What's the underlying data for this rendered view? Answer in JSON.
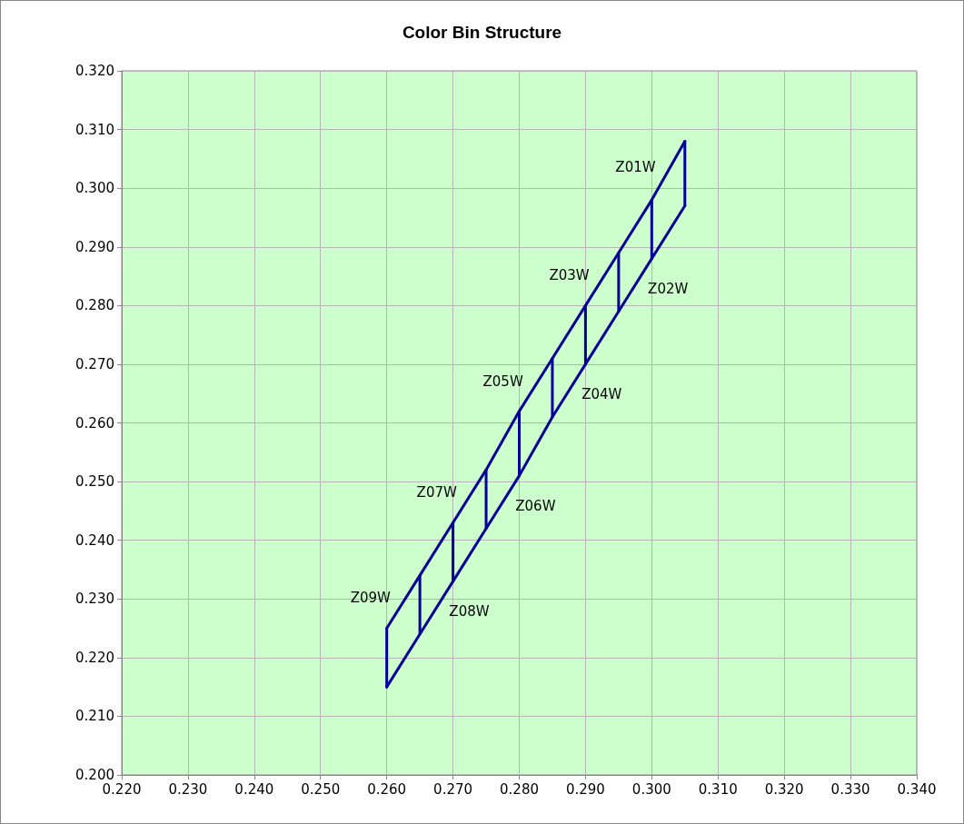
{
  "chart_data": {
    "type": "line",
    "title": "Color Bin Structure",
    "series": [
      {
        "color": "#000099",
        "x": [
          0.26,
          0.265,
          0.27,
          0.275,
          0.28,
          0.285,
          0.29,
          0.295,
          0.3,
          0.305
        ],
        "values": [
          0.225,
          0.234,
          0.243,
          0.252,
          0.262,
          0.271,
          0.28,
          0.289,
          0.298,
          0.308
        ]
      },
      {
        "color": "#000099",
        "x": [
          0.26,
          0.265,
          0.27,
          0.275,
          0.28,
          0.285,
          0.29,
          0.295,
          0.3,
          0.305
        ],
        "values": [
          0.215,
          0.224,
          0.233,
          0.242,
          0.251,
          0.261,
          0.27,
          0.279,
          0.288,
          0.297
        ]
      },
      {
        "color": "#000099",
        "x": [
          0.26,
          0.26
        ],
        "values": [
          0.215,
          0.225
        ]
      },
      {
        "color": "#000099",
        "x": [
          0.265,
          0.265
        ],
        "values": [
          0.224,
          0.234
        ]
      },
      {
        "color": "#000099",
        "x": [
          0.27,
          0.27
        ],
        "values": [
          0.233,
          0.243
        ]
      },
      {
        "color": "#000099",
        "x": [
          0.275,
          0.275
        ],
        "values": [
          0.242,
          0.252
        ]
      },
      {
        "color": "#000099",
        "x": [
          0.28,
          0.28
        ],
        "values": [
          0.251,
          0.262
        ]
      },
      {
        "color": "#000099",
        "x": [
          0.285,
          0.285
        ],
        "values": [
          0.261,
          0.271
        ]
      },
      {
        "color": "#000099",
        "x": [
          0.29,
          0.29
        ],
        "values": [
          0.27,
          0.28
        ]
      },
      {
        "color": "#000099",
        "x": [
          0.295,
          0.295
        ],
        "values": [
          0.279,
          0.289
        ]
      },
      {
        "color": "#000099",
        "x": [
          0.3,
          0.3
        ],
        "values": [
          0.288,
          0.298
        ]
      },
      {
        "color": "#000099",
        "x": [
          0.305,
          0.305
        ],
        "values": [
          0.297,
          0.308
        ]
      }
    ],
    "annotations": [
      "Z01W",
      "Z02W",
      "Z03W",
      "Z04W",
      "Z05W",
      "Z06W",
      "Z07W",
      "Z08W",
      "Z09W"
    ],
    "xlim": [
      0.22,
      0.34
    ],
    "xticks": [
      {
        "value": 0.22,
        "label": "0.220"
      },
      {
        "value": 0.23,
        "label": "0.230"
      },
      {
        "value": 0.24,
        "label": "0.240"
      },
      {
        "value": 0.25,
        "label": "0.250"
      },
      {
        "value": 0.26,
        "label": "0.260"
      },
      {
        "value": 0.27,
        "label": "0.270"
      },
      {
        "value": 0.28,
        "label": "0.280"
      },
      {
        "value": 0.29,
        "label": "0.290"
      },
      {
        "value": 0.3,
        "label": "0.300"
      },
      {
        "value": 0.31,
        "label": "0.310"
      },
      {
        "value": 0.32,
        "label": "0.320"
      },
      {
        "value": 0.33,
        "label": "0.330"
      },
      {
        "value": 0.34,
        "label": "0.340"
      }
    ],
    "ylim": [
      0.2,
      0.32
    ],
    "yticks": [
      {
        "value": 0.2,
        "label": "0.200"
      },
      {
        "value": 0.21,
        "label": "0.210"
      },
      {
        "value": 0.22,
        "label": "0.220"
      },
      {
        "value": 0.23,
        "label": "0.230"
      },
      {
        "value": 0.24,
        "label": "0.240"
      },
      {
        "value": 0.25,
        "label": "0.250"
      },
      {
        "value": 0.26,
        "label": "0.260"
      },
      {
        "value": 0.27,
        "label": "0.270"
      },
      {
        "value": 0.28,
        "label": "0.280"
      },
      {
        "value": 0.29,
        "label": "0.290"
      },
      {
        "value": 0.3,
        "label": "0.300"
      },
      {
        "value": 0.31,
        "label": "0.310"
      },
      {
        "value": 0.32,
        "label": "0.320"
      }
    ],
    "grid": true,
    "marker": "none",
    "line_style": "solid"
  }
}
